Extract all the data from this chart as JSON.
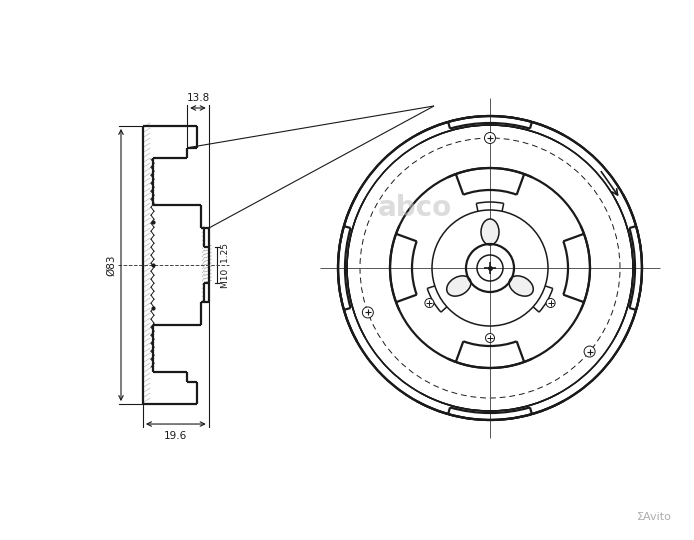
{
  "bg_color": "#ffffff",
  "line_color": "#1a1a1a",
  "dim_color": "#1a1a1a",
  "fig_width": 6.94,
  "fig_height": 5.4,
  "dpi": 100,
  "dim_13_8": "13.8",
  "dim_83": "Ø83",
  "dim_19_6": "19.6",
  "dim_m10": "M10  1.25",
  "watermark": "abco",
  "brand": "ΣAvito"
}
